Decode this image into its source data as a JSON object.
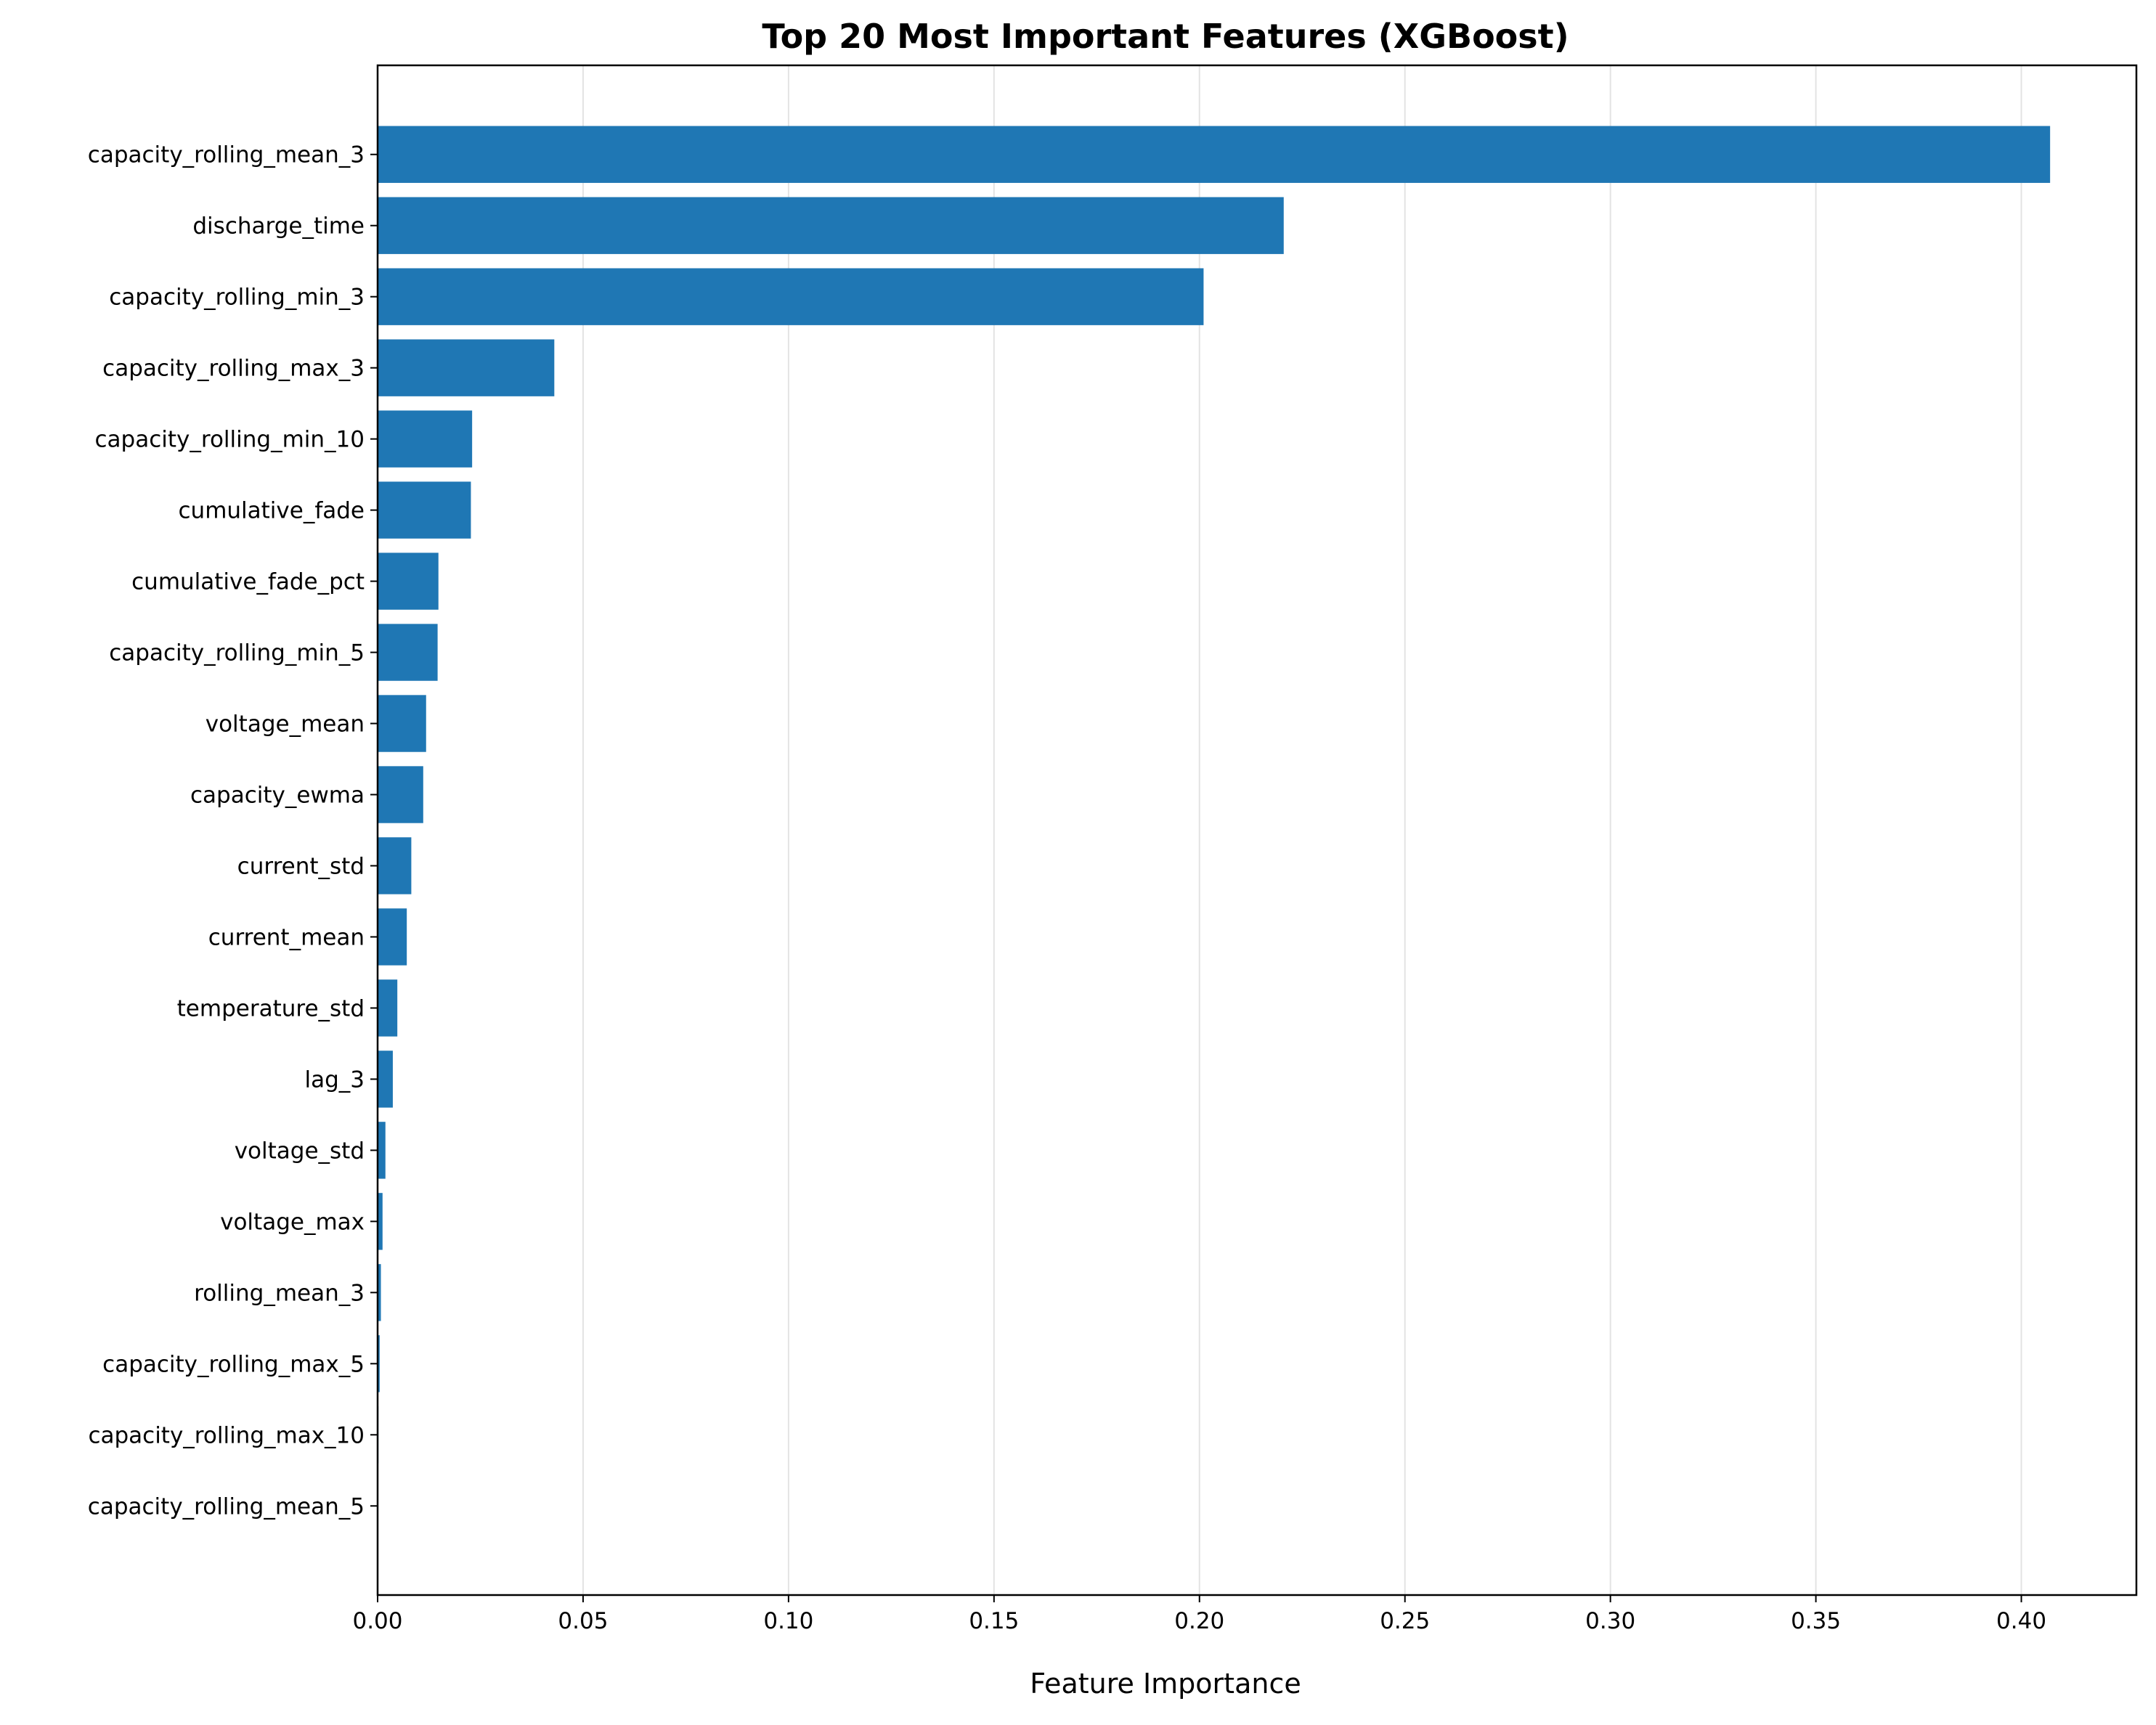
{
  "chart_data": {
    "type": "bar",
    "orientation": "horizontal",
    "title": "Top 20 Most Important Features (XGBoost)",
    "xlabel": "Feature Importance",
    "ylabel": "",
    "xlim": [
      0,
      0.428
    ],
    "xticks": [
      "0.00",
      "0.05",
      "0.10",
      "0.15",
      "0.20",
      "0.25",
      "0.30",
      "0.35",
      "0.40"
    ],
    "grid": "x",
    "bar_color": "#1f77b4",
    "categories": [
      "capacity_rolling_mean_3",
      "discharge_time",
      "capacity_rolling_min_3",
      "capacity_rolling_max_3",
      "capacity_rolling_min_10",
      "cumulative_fade",
      "cumulative_fade_pct",
      "capacity_rolling_min_5",
      "voltage_mean",
      "capacity_ewma",
      "current_std",
      "current_mean",
      "temperature_std",
      "lag_3",
      "voltage_std",
      "voltage_max",
      "rolling_mean_3",
      "capacity_rolling_max_5",
      "capacity_rolling_max_10",
      "capacity_rolling_mean_5"
    ],
    "values": [
      0.407,
      0.2205,
      0.201,
      0.043,
      0.023,
      0.0227,
      0.0148,
      0.0146,
      0.0118,
      0.0111,
      0.0082,
      0.0071,
      0.0048,
      0.0037,
      0.0019,
      0.0012,
      0.0008,
      0.0005,
      0.0002,
      0.0001
    ]
  }
}
